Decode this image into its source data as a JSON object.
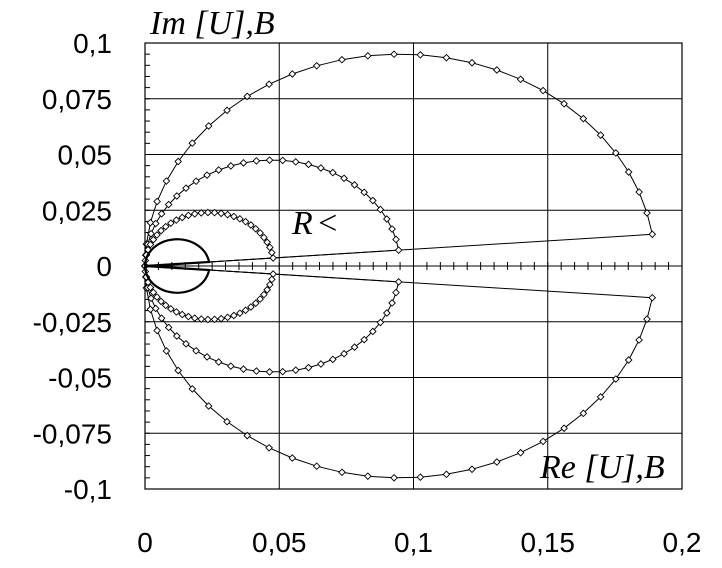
{
  "chart_data": {
    "type": "line",
    "title": "",
    "xlabel": "Re [U],B",
    "ylabel": "Im [U],B",
    "annotation": "R",
    "annotation_arrow": "<",
    "xlim": [
      0,
      0.2
    ],
    "ylim": [
      -0.1,
      0.1
    ],
    "xticks": [
      "0",
      "0,05",
      "0,1",
      "0,15",
      "0,2"
    ],
    "yticks": [
      "0,1",
      "0,075",
      "0,05",
      "0,025",
      "0",
      "-0,025",
      "-0,05",
      "-0,075",
      "-0,1"
    ],
    "xtick_values": [
      0,
      0.05,
      0.1,
      0.15,
      0.2
    ],
    "ytick_values": [
      0.1,
      0.075,
      0.05,
      0.025,
      0,
      -0.025,
      -0.05,
      -0.075,
      -0.1
    ],
    "grid": true,
    "series": [
      {
        "diameter": 0.19,
        "markers": true,
        "point_count": 60
      },
      {
        "diameter": 0.095,
        "markers": true,
        "point_count": 60
      },
      {
        "diameter": 0.048,
        "markers": true,
        "point_count": 60
      },
      {
        "diameter": 0.024,
        "markers": false,
        "point_count": 60
      }
    ]
  }
}
